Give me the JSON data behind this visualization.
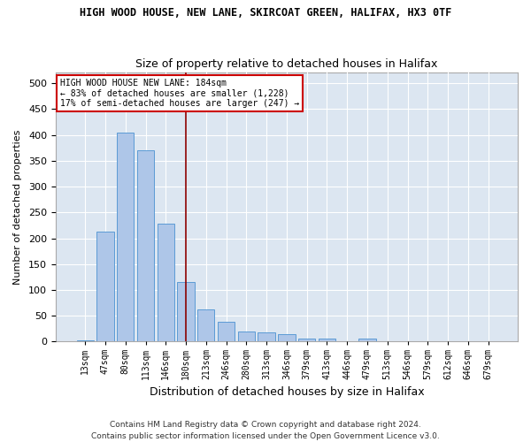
{
  "title": "HIGH WOOD HOUSE, NEW LANE, SKIRCOAT GREEN, HALIFAX, HX3 0TF",
  "subtitle": "Size of property relative to detached houses in Halifax",
  "xlabel": "Distribution of detached houses by size in Halifax",
  "ylabel": "Number of detached properties",
  "categories": [
    "13sqm",
    "47sqm",
    "80sqm",
    "113sqm",
    "146sqm",
    "180sqm",
    "213sqm",
    "246sqm",
    "280sqm",
    "313sqm",
    "346sqm",
    "379sqm",
    "413sqm",
    "446sqm",
    "479sqm",
    "513sqm",
    "546sqm",
    "579sqm",
    "612sqm",
    "646sqm",
    "679sqm"
  ],
  "values": [
    3,
    213,
    405,
    370,
    228,
    116,
    63,
    39,
    19,
    18,
    14,
    6,
    6,
    1,
    6,
    1,
    0,
    1,
    0,
    1,
    1
  ],
  "bar_color": "#aec6e8",
  "bar_edge_color": "#5b9bd5",
  "fig_background_color": "#ffffff",
  "plot_background_color": "#dce6f1",
  "grid_color": "#ffffff",
  "vline_x_index": 5,
  "vline_color": "#8b0000",
  "annotation_line1": "HIGH WOOD HOUSE NEW LANE: 184sqm",
  "annotation_line2": "← 83% of detached houses are smaller (1,228)",
  "annotation_line3": "17% of semi-detached houses are larger (247) →",
  "annotation_box_color": "#ffffff",
  "annotation_box_edge": "#cc0000",
  "footer": "Contains HM Land Registry data © Crown copyright and database right 2024.\nContains public sector information licensed under the Open Government Licence v3.0.",
  "ylim": [
    0,
    520
  ],
  "yticks": [
    0,
    50,
    100,
    150,
    200,
    250,
    300,
    350,
    400,
    450,
    500
  ],
  "figsize": [
    6.0,
    5.0
  ],
  "dpi": 100
}
